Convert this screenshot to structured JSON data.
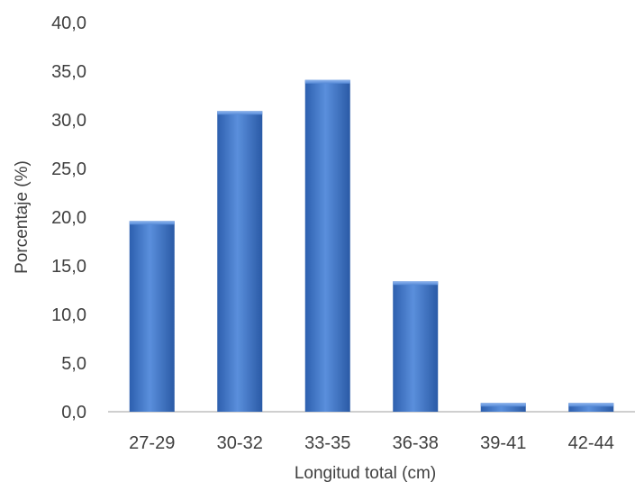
{
  "chart_data": {
    "type": "bar",
    "title": "",
    "xlabel": "Longitud total (cm)",
    "ylabel": "Porcentaje (%)",
    "categories": [
      "27-29",
      "30-32",
      "33-35",
      "36-38",
      "39-41",
      "42-44"
    ],
    "values": [
      19.6,
      30.9,
      34.1,
      13.4,
      0.9,
      0.9
    ],
    "ylim": [
      0,
      40
    ],
    "yticks": [
      "0,0",
      "5,0",
      "10,0",
      "15,0",
      "20,0",
      "25,0",
      "30,0",
      "35,0",
      "40,0"
    ],
    "grid": false,
    "legend": "none",
    "bar_color": "#4a7fd0",
    "bar_color_dark": "#2a5aa6",
    "bar_color_light": "#7aa8ea"
  }
}
